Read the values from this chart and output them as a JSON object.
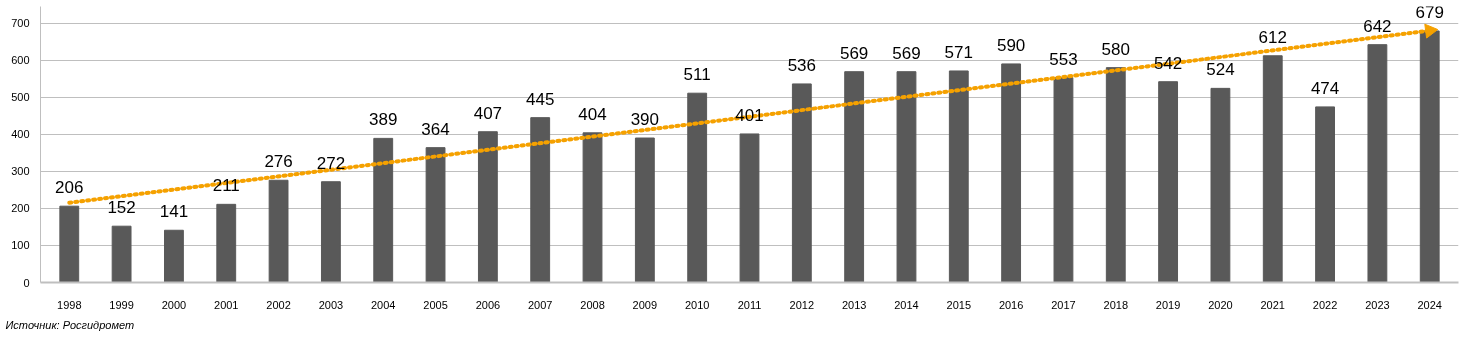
{
  "chart_data": {
    "type": "bar",
    "x": [
      1998,
      1999,
      2000,
      2001,
      2002,
      2003,
      2004,
      2005,
      2006,
      2007,
      2008,
      2009,
      2010,
      2011,
      2012,
      2013,
      2014,
      2015,
      2016,
      2017,
      2018,
      2019,
      2020,
      2021,
      2022,
      2023,
      2024
    ],
    "series": [
      {
        "color": "#595959",
        "values": [
          206,
          152,
          141,
          211,
          276,
          272,
          389,
          364,
          407,
          445,
          404,
          390,
          511,
          401,
          536,
          569,
          569,
          571,
          590,
          553,
          580,
          542,
          524,
          612,
          474,
          642,
          679
        ],
        "value_labels": [
          "206",
          "152",
          "141",
          "211",
          "276",
          "272",
          "389",
          "364",
          "407",
          "445",
          "404",
          "390",
          "511",
          "401",
          "536",
          "569",
          "569",
          "571",
          "590",
          "553",
          "580",
          "542",
          "524",
          "612",
          "474",
          "642",
          "679"
        ]
      },
      {
        "type": "line",
        "color": "#f5a100",
        "x": [
          1998,
          2024
        ],
        "values": [
          215,
          680
        ],
        "line_style": "dotted"
      }
    ],
    "xlim": [
      1997.45,
      2024.55
    ],
    "xticks": [
      1998,
      1999,
      2000,
      2001,
      2002,
      2003,
      2004,
      2005,
      2006,
      2007,
      2008,
      2009,
      2010,
      2011,
      2012,
      2013,
      2014,
      2015,
      2016,
      2017,
      2018,
      2019,
      2020,
      2021,
      2022,
      2023,
      2024
    ],
    "ylim": [
      0,
      745
    ],
    "yticks": [
      0,
      100,
      200,
      300,
      400,
      500,
      600,
      700
    ],
    "grid": "y",
    "annotations": [
      "Источник: Росгидромет"
    ]
  }
}
